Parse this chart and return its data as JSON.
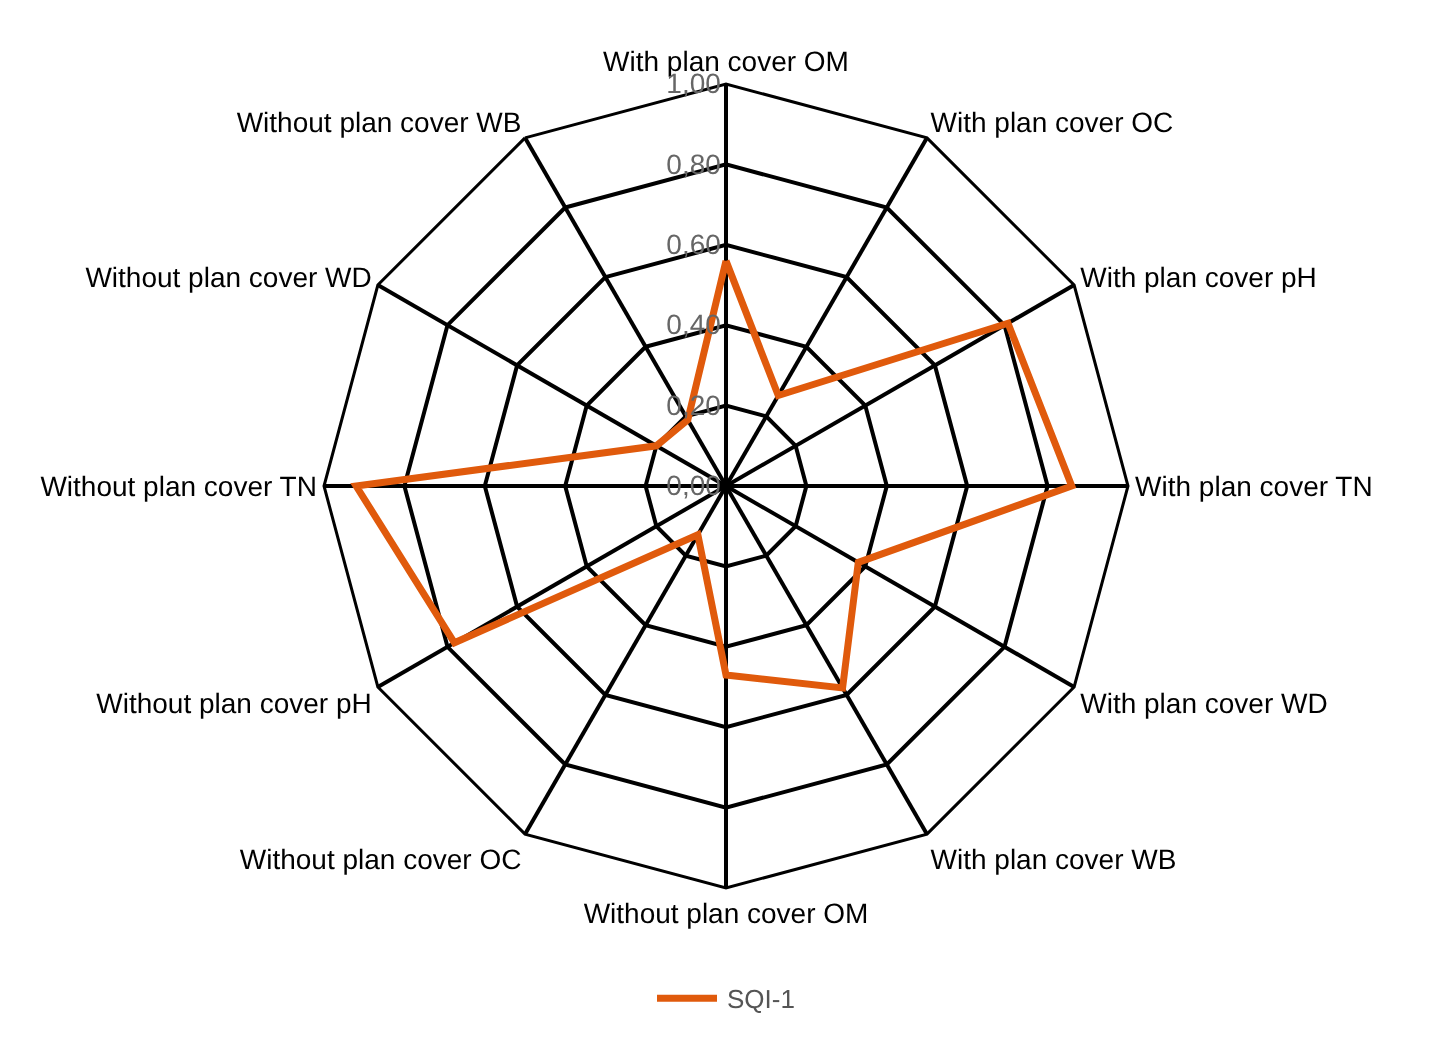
{
  "chart_data": {
    "type": "radar",
    "categories": [
      "With plan cover OM",
      "With plan cover OC",
      "With plan cover pH",
      "With plan cover TN",
      "With plan cover WD",
      "With plan cover WB",
      "Without plan cover OM",
      "Without plan cover OC",
      "Without plan cover pH",
      "Without plan cover TN",
      "Without plan cover WD",
      "Without plan cover WB"
    ],
    "series": [
      {
        "name": "SQI-1",
        "color": "#e05a0c",
        "values": [
          0.56,
          0.26,
          0.81,
          0.86,
          0.38,
          0.58,
          0.47,
          0.14,
          0.78,
          0.92,
          0.2,
          0.19
        ]
      }
    ],
    "ylim": [
      0,
      1
    ],
    "yticks": [
      {
        "value": 0,
        "label": "0,00"
      },
      {
        "value": 0.2,
        "label": "0,20"
      },
      {
        "value": 0.4,
        "label": "0,40"
      },
      {
        "value": 0.6,
        "label": "0,60"
      },
      {
        "value": 0.8,
        "label": "0,80"
      },
      {
        "value": 1,
        "label": "1,00"
      }
    ],
    "grid": true,
    "legend": "bottom",
    "marker": "none",
    "line_style": "solid"
  }
}
